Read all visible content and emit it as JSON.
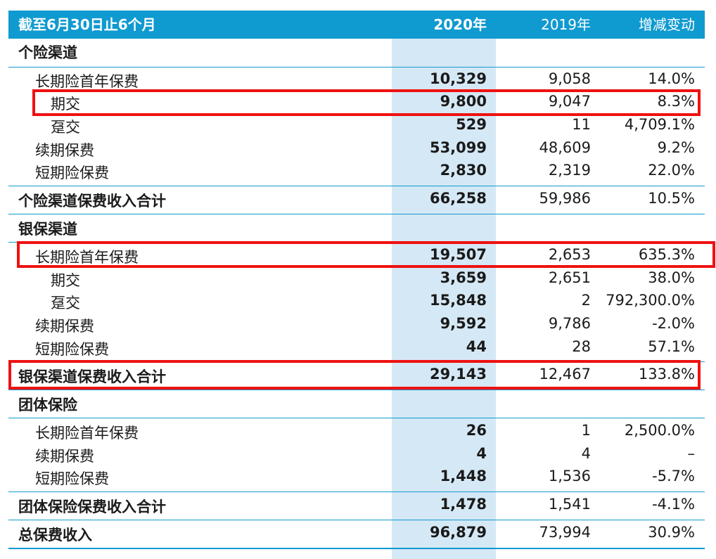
{
  "header": {
    "c0": "截至6月30日止6个月",
    "c1": "2020年",
    "c2": "2019年",
    "c3": "增减变动"
  },
  "rows": [
    {
      "c0": "个险渠道",
      "c1": "",
      "c2": "",
      "c3": ""
    },
    {
      "c0": "长期险首年保费",
      "c1": "10,329",
      "c2": "9,058",
      "c3": "14.0%"
    },
    {
      "c0": "期交",
      "c1": "9,800",
      "c2": "9,047",
      "c3": "8.3%"
    },
    {
      "c0": "趸交",
      "c1": "529",
      "c2": "11",
      "c3": "4,709.1%"
    },
    {
      "c0": "续期保费",
      "c1": "53,099",
      "c2": "48,609",
      "c3": "9.2%"
    },
    {
      "c0": "短期险保费",
      "c1": "2,830",
      "c2": "2,319",
      "c3": "22.0%"
    },
    {
      "c0": "个险渠道保费收入合计",
      "c1": "66,258",
      "c2": "59,986",
      "c3": "10.5%"
    },
    {
      "c0": "银保渠道",
      "c1": "",
      "c2": "",
      "c3": ""
    },
    {
      "c0": "长期险首年保费",
      "c1": "19,507",
      "c2": "2,653",
      "c3": "635.3%"
    },
    {
      "c0": "期交",
      "c1": "3,659",
      "c2": "2,651",
      "c3": "38.0%"
    },
    {
      "c0": "趸交",
      "c1": "15,848",
      "c2": "2",
      "c3": "792,300.0%"
    },
    {
      "c0": "续期保费",
      "c1": "9,592",
      "c2": "9,786",
      "c3": "-2.0%"
    },
    {
      "c0": "短期险保费",
      "c1": "44",
      "c2": "28",
      "c3": "57.1%"
    },
    {
      "c0": "银保渠道保费收入合计",
      "c1": "29,143",
      "c2": "12,467",
      "c3": "133.8%"
    },
    {
      "c0": "团体保险",
      "c1": "",
      "c2": "",
      "c3": ""
    },
    {
      "c0": "长期险首年保费",
      "c1": "26",
      "c2": "1",
      "c3": "2,500.0%"
    },
    {
      "c0": "续期保费",
      "c1": "4",
      "c2": "4",
      "c3": "–"
    },
    {
      "c0": "短期险保费",
      "c1": "1,448",
      "c2": "1,536",
      "c3": "-5.7%"
    },
    {
      "c0": "团体保险保费收入合计",
      "c1": "1,478",
      "c2": "1,541",
      "c3": "-4.1%"
    },
    {
      "c0": "总保费收入",
      "c1": "96,879",
      "c2": "73,994",
      "c3": "30.9%"
    }
  ]
}
